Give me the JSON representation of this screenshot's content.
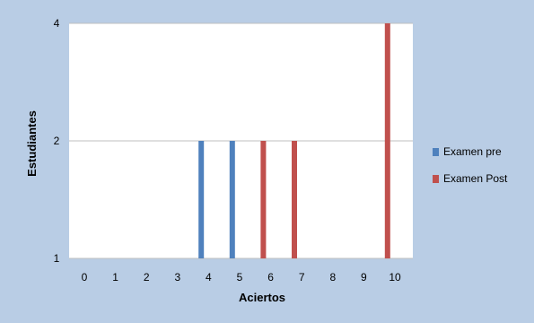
{
  "chart_data": {
    "type": "bar",
    "title": "",
    "xlabel": "Aciertos",
    "ylabel": "Estudiantes",
    "categories": [
      "0",
      "1",
      "2",
      "3",
      "4",
      "5",
      "6",
      "7",
      "8",
      "9",
      "10"
    ],
    "y_ticks": [
      1,
      2,
      4
    ],
    "y_scale": "log2",
    "ylim": [
      1,
      4
    ],
    "grid": "horizontal",
    "legend_position": "right",
    "series": [
      {
        "name": "Examen pre",
        "color": "#4f81bd",
        "values": [
          null,
          null,
          2,
          2,
          null,
          null,
          null,
          null,
          null,
          null,
          null
        ]
      },
      {
        "name": "Examen Post",
        "color": "#c0504d",
        "values": [
          null,
          null,
          null,
          null,
          2,
          2,
          null,
          null,
          4,
          null,
          null
        ]
      }
    ],
    "colors": {
      "frame_background": "#b9cde5",
      "plot_background": "#ffffff",
      "gridline": "#bfbfbf"
    }
  }
}
